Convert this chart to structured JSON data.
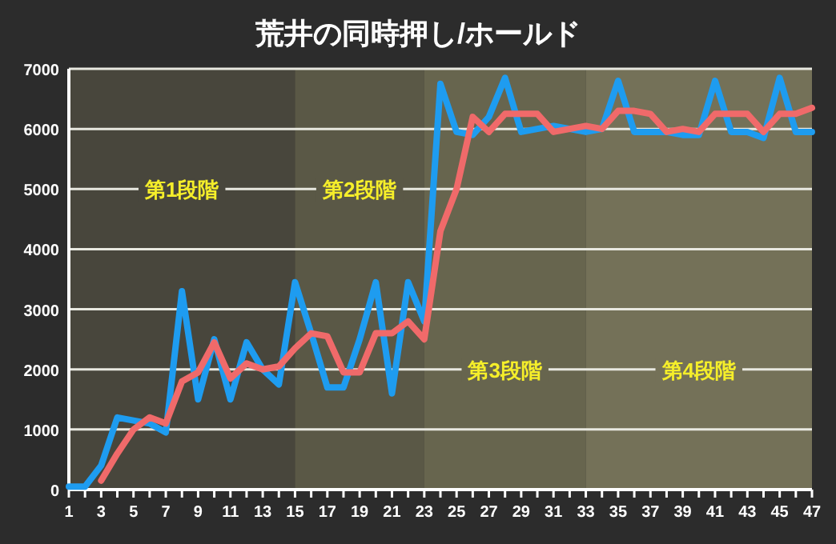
{
  "chart_data": {
    "type": "line",
    "title": "荒井の同時押し/ホールド",
    "x": [
      1,
      2,
      3,
      4,
      5,
      6,
      7,
      8,
      9,
      10,
      11,
      12,
      13,
      14,
      15,
      16,
      17,
      18,
      19,
      20,
      21,
      22,
      23,
      24,
      25,
      26,
      27,
      28,
      29,
      30,
      31,
      32,
      33,
      34,
      35,
      36,
      37,
      38,
      39,
      40,
      41,
      42,
      43,
      44,
      45,
      46,
      47
    ],
    "series": [
      {
        "color": "#1e9cf0",
        "values": [
          50,
          50,
          400,
          1200,
          1150,
          1100,
          950,
          3300,
          1500,
          2500,
          1500,
          2450,
          2000,
          1750,
          3450,
          2600,
          1700,
          1700,
          2500,
          3450,
          1600,
          3450,
          2800,
          6750,
          5950,
          5900,
          6200,
          6850,
          5950,
          6000,
          6050,
          6000,
          5950,
          6000,
          6800,
          5950,
          5950,
          5950,
          5900,
          5900,
          6800,
          5950,
          5950,
          5850,
          6850,
          5950,
          5950
        ]
      },
      {
        "color": "#f06a6a",
        "values": [
          null,
          null,
          150,
          600,
          1000,
          1200,
          1100,
          1800,
          1950,
          2450,
          1850,
          2100,
          2000,
          2050,
          2350,
          2600,
          2550,
          1950,
          1950,
          2600,
          2600,
          2800,
          2500,
          4300,
          5000,
          6200,
          5950,
          6250,
          6250,
          6250,
          5950,
          6000,
          6050,
          6000,
          6300,
          6300,
          6250,
          5950,
          6000,
          5950,
          6250,
          6250,
          6250,
          5950,
          6250,
          6250,
          6350
        ]
      }
    ],
    "xlim": [
      1,
      47
    ],
    "xticks": [
      1,
      3,
      5,
      7,
      9,
      11,
      13,
      15,
      17,
      19,
      21,
      23,
      25,
      27,
      29,
      31,
      33,
      35,
      37,
      39,
      41,
      43,
      45,
      47
    ],
    "ylim": [
      0,
      7000
    ],
    "yticks": [
      0,
      1000,
      2000,
      3000,
      4000,
      5000,
      6000,
      7000
    ],
    "grid": "y",
    "marker": "none",
    "line_style": "solid",
    "bands": [
      {
        "axis": "x",
        "from": 1,
        "to": 15,
        "label": "第1段階",
        "color": "#48463c"
      },
      {
        "axis": "x",
        "from": 15,
        "to": 23,
        "label": "第2段階",
        "color": "#5a5846"
      },
      {
        "axis": "x",
        "from": 23,
        "to": 33,
        "label": "第3段階",
        "color": "#67654e"
      },
      {
        "axis": "x",
        "from": 33,
        "to": 47,
        "label": "第4段階",
        "color": "#747158"
      }
    ]
  }
}
